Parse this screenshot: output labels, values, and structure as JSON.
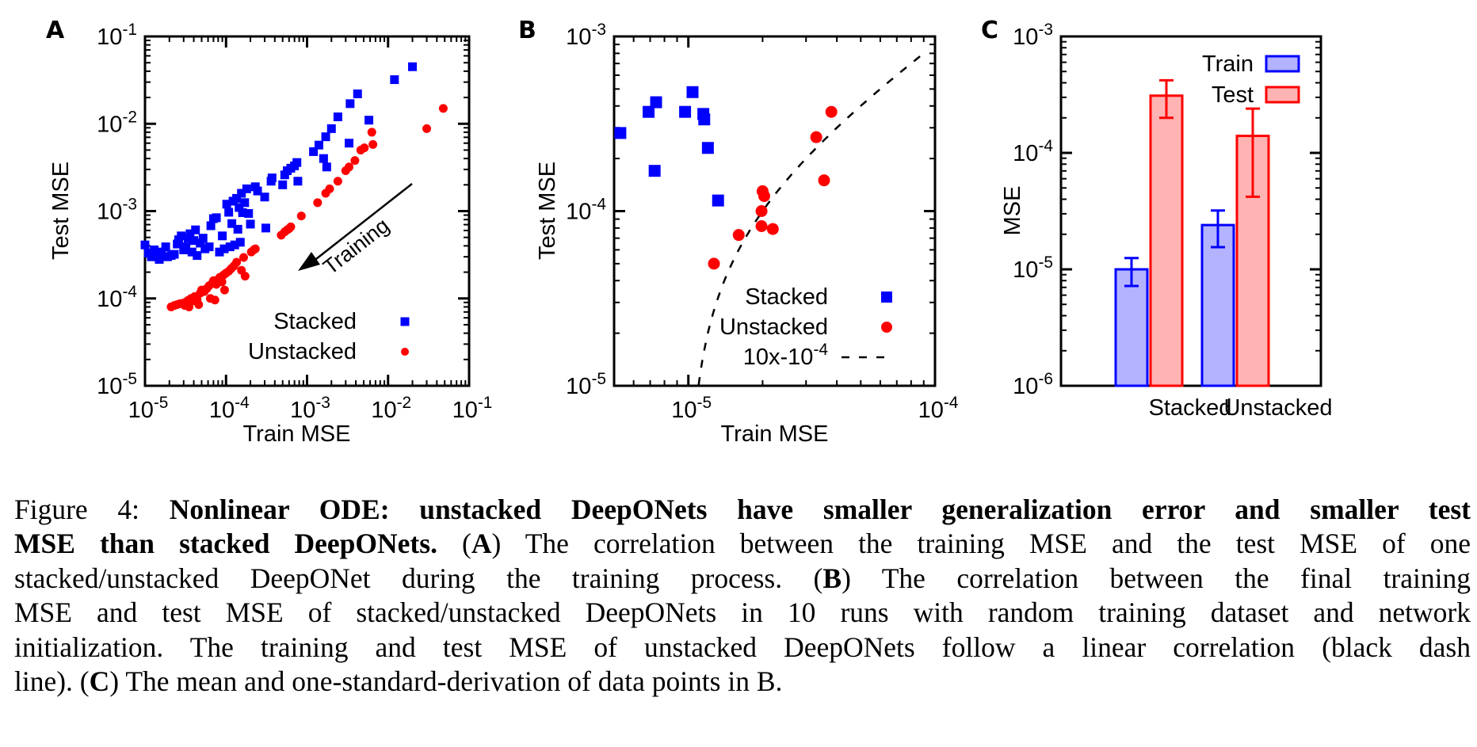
{
  "chart_data": [
    {
      "panel": "A",
      "type": "scatter",
      "xlabel": "Train MSE",
      "ylabel": "Test MSE",
      "xscale": "log",
      "yscale": "log",
      "xlim": [
        1e-05,
        0.1
      ],
      "ylim": [
        1e-05,
        0.1
      ],
      "xticks": [
        {
          "value": 1e-05,
          "base": "10",
          "exp": "-5"
        },
        {
          "value": 0.0001,
          "base": "10",
          "exp": "-4"
        },
        {
          "value": 0.001,
          "base": "10",
          "exp": "-3"
        },
        {
          "value": 0.01,
          "base": "10",
          "exp": "-2"
        },
        {
          "value": 0.1,
          "base": "10",
          "exp": "-1"
        }
      ],
      "yticks": [
        {
          "value": 1e-05,
          "base": "10",
          "exp": "-5"
        },
        {
          "value": 0.0001,
          "base": "10",
          "exp": "-4"
        },
        {
          "value": 0.001,
          "base": "10",
          "exp": "-3"
        },
        {
          "value": 0.01,
          "base": "10",
          "exp": "-2"
        },
        {
          "value": 0.1,
          "base": "10",
          "exp": "-1"
        }
      ],
      "legend": "bottom-right",
      "annotation": {
        "text": "Training",
        "arrow_from": [
          0.007,
          0.0011
        ],
        "arrow_to": [
          0.0008,
          0.00021
        ]
      },
      "series": [
        {
          "name": "Stacked",
          "marker": "square",
          "color": "#0000ff",
          "points": [
            [
              1e-05,
              0.00041
            ],
            [
              1.1e-05,
              0.00033
            ],
            [
              1.2e-05,
              0.0003
            ],
            [
              1.3e-05,
              0.00036
            ],
            [
              1.4e-05,
              0.0003
            ],
            [
              1.5e-05,
              0.00028
            ],
            [
              1.6e-05,
              0.00034
            ],
            [
              1.8e-05,
              0.00039
            ],
            [
              1.9e-05,
              0.0003
            ],
            [
              2.1e-05,
              0.00031
            ],
            [
              2.3e-05,
              0.00032
            ],
            [
              2.5e-05,
              0.00042
            ],
            [
              2.6e-05,
              0.00047
            ],
            [
              2.8e-05,
              0.00052
            ],
            [
              3e-05,
              0.00036
            ],
            [
              3.2e-05,
              0.00039
            ],
            [
              3.4e-05,
              0.00049
            ],
            [
              3.6e-05,
              0.00055
            ],
            [
              3.8e-05,
              0.00034
            ],
            [
              4e-05,
              0.00046
            ],
            [
              4.2e-05,
              0.00061
            ],
            [
              4.4e-05,
              0.00031
            ],
            [
              4.8e-05,
              0.00043
            ],
            [
              5.2e-05,
              0.00049
            ],
            [
              5.5e-05,
              0.00037
            ],
            [
              6.2e-05,
              0.00039
            ],
            [
              6.5e-05,
              0.00068
            ],
            [
              7e-05,
              0.00082
            ],
            [
              7.6e-05,
              0.00084
            ],
            [
              8.3e-05,
              0.00034
            ],
            [
              9e-05,
              0.00052
            ],
            [
              9.5e-05,
              0.00037
            ],
            [
              0.000102,
              0.0012
            ],
            [
              0.000108,
              0.00097
            ],
            [
              0.000112,
              0.00039
            ],
            [
              0.000118,
              0.00072
            ],
            [
              0.000122,
              0.0013
            ],
            [
              0.000128,
              0.00041
            ],
            [
              0.000135,
              0.0014
            ],
            [
              0.00014,
              0.00062
            ],
            [
              0.000145,
              0.0011
            ],
            [
              0.00015,
              0.00044
            ],
            [
              0.000155,
              0.0016
            ],
            [
              0.00016,
              0.00096
            ],
            [
              0.00017,
              0.00125
            ],
            [
              0.00018,
              0.0018
            ],
            [
              0.00019,
              0.00094
            ],
            [
              0.0002,
              0.00071
            ],
            [
              0.00023,
              0.0019
            ],
            [
              0.000245,
              0.0017
            ],
            [
              0.0003,
              0.00145
            ],
            [
              0.00031,
              0.00064
            ],
            [
              0.00036,
              0.0022
            ],
            [
              0.00037,
              0.0024
            ],
            [
              0.0005,
              0.002
            ],
            [
              0.00053,
              0.0026
            ],
            [
              0.00057,
              0.0029
            ],
            [
              0.00063,
              0.0031
            ],
            [
              0.0007,
              0.0033
            ],
            [
              0.00075,
              0.0036
            ],
            [
              0.00077,
              0.0022
            ],
            [
              0.0012,
              0.0048
            ],
            [
              0.0014,
              0.0057
            ],
            [
              0.0016,
              0.004
            ],
            [
              0.0017,
              0.0071
            ],
            [
              0.00175,
              0.0032
            ],
            [
              0.002,
              0.0088
            ],
            [
              0.0024,
              0.012
            ],
            [
              0.0033,
              0.006
            ],
            [
              0.0034,
              0.017
            ],
            [
              0.0042,
              0.022
            ],
            [
              0.0058,
              0.011
            ],
            [
              0.012,
              0.032
            ],
            [
              0.02,
              0.045
            ]
          ]
        },
        {
          "name": "Unstacked",
          "marker": "circle",
          "color": "#ff0000",
          "points": [
            [
              2.1e-05,
              8e-05
            ],
            [
              2.3e-05,
              8.3e-05
            ],
            [
              2.5e-05,
              8.5e-05
            ],
            [
              2.7e-05,
              8.7e-05
            ],
            [
              2.9e-05,
              8.8e-05
            ],
            [
              3.1e-05,
              8.3e-05
            ],
            [
              3.2e-05,
              9.1e-05
            ],
            [
              3.4e-05,
              9.5e-05
            ],
            [
              3.5e-05,
              8e-05
            ],
            [
              3.7e-05,
              0.0001
            ],
            [
              3.9e-05,
              9.4e-05
            ],
            [
              4.1e-05,
              0.000105
            ],
            [
              4.4e-05,
              9.8e-05
            ],
            [
              4.6e-05,
              8.5e-05
            ],
            [
              4.8e-05,
              0.000115
            ],
            [
              5e-05,
              0.000125
            ],
            [
              5.4e-05,
              0.00012
            ],
            [
              5.8e-05,
              0.00013
            ],
            [
              6.2e-05,
              0.00014
            ],
            [
              6.4e-05,
              0.0001
            ],
            [
              6.8e-05,
              0.00015
            ],
            [
              7e-05,
              0.00016
            ],
            [
              7.3e-05,
              9.6e-05
            ],
            [
              7.6e-05,
              0.000145
            ],
            [
              8e-05,
              0.000165
            ],
            [
              8.4e-05,
              0.000175
            ],
            [
              8.9e-05,
              0.000155
            ],
            [
              9.3e-05,
              0.000185
            ],
            [
              9.6e-05,
              0.000125
            ],
            [
              0.0001,
              0.000195
            ],
            [
              0.000108,
              0.000205
            ],
            [
              0.000116,
              0.00022
            ],
            [
              0.000125,
              0.000235
            ],
            [
              0.000135,
              0.00026
            ],
            [
              0.000155,
              0.00021
            ],
            [
              0.000165,
              0.000295
            ],
            [
              0.000172,
              0.00018
            ],
            [
              0.000205,
              0.00034
            ],
            [
              0.00022,
              0.00036
            ],
            [
              0.00023,
              0.00037
            ],
            [
              0.00048,
              0.00053
            ],
            [
              0.00053,
              0.00058
            ],
            [
              0.00057,
              0.00061
            ],
            [
              0.0006,
              0.00063
            ],
            [
              0.00063,
              0.00066
            ],
            [
              0.00085,
              0.00088
            ],
            [
              0.00135,
              0.00125
            ],
            [
              0.0017,
              0.0016
            ],
            [
              0.0019,
              0.0018
            ],
            [
              0.0024,
              0.0022
            ],
            [
              0.003,
              0.0029
            ],
            [
              0.0033,
              0.0032
            ],
            [
              0.0039,
              0.0038
            ],
            [
              0.0046,
              0.005
            ],
            [
              0.0051,
              0.0053
            ],
            [
              0.0063,
              0.008
            ],
            [
              0.0065,
              0.0058
            ],
            [
              0.03,
              0.0088
            ],
            [
              0.048,
              0.015
            ]
          ]
        }
      ]
    },
    {
      "panel": "B",
      "type": "scatter",
      "xlabel": "Train MSE",
      "ylabel": "Test MSE",
      "xscale": "log",
      "yscale": "log",
      "xlim": [
        5e-06,
        0.0001
      ],
      "ylim": [
        1e-05,
        0.001
      ],
      "xticks": [
        {
          "value": 1e-05,
          "base": "10",
          "exp": "-5"
        },
        {
          "value": 0.0001,
          "base": "10",
          "exp": "-4"
        }
      ],
      "yticks": [
        {
          "value": 1e-05,
          "base": "10",
          "exp": "-5"
        },
        {
          "value": 0.0001,
          "base": "10",
          "exp": "-4"
        },
        {
          "value": 0.001,
          "base": "10",
          "exp": "-3"
        }
      ],
      "legend": "bottom-right",
      "series": [
        {
          "name": "Stacked",
          "marker": "square",
          "color": "#0000ff",
          "points": [
            [
              5.3e-06,
              0.00028
            ],
            [
              6.9e-06,
              0.00037
            ],
            [
              7.4e-06,
              0.00042
            ],
            [
              7.3e-06,
              0.00017
            ],
            [
              9.7e-06,
              0.00037
            ],
            [
              1.04e-05,
              0.00048
            ],
            [
              1.15e-05,
              0.00036
            ],
            [
              1.16e-05,
              0.000335
            ],
            [
              1.2e-05,
              0.00023
            ],
            [
              1.32e-05,
              0.000115
            ]
          ]
        },
        {
          "name": "Unstacked",
          "marker": "circle",
          "color": "#ff0000",
          "points": [
            [
              1.27e-05,
              5e-05
            ],
            [
              1.6e-05,
              7.3e-05
            ],
            [
              2e-05,
              0.00013
            ],
            [
              2.03e-05,
              0.000122
            ],
            [
              1.98e-05,
              0.0001
            ],
            [
              1.98e-05,
              8.2e-05
            ],
            [
              2.2e-05,
              7.9e-05
            ],
            [
              3.3e-05,
              0.000265
            ],
            [
              3.55e-05,
              0.00015
            ],
            [
              3.8e-05,
              0.00037
            ]
          ]
        },
        {
          "name": "10x-10^-4",
          "label_base": "10x-10",
          "label_exp": "-4",
          "style": "dashed",
          "color": "#000000",
          "function": "y = 10*x - 1e-4"
        }
      ]
    },
    {
      "panel": "C",
      "type": "bar",
      "ylabel": "MSE",
      "yscale": "log",
      "ylim": [
        1e-06,
        0.001
      ],
      "yticks": [
        {
          "value": 1e-06,
          "base": "10",
          "exp": "-6"
        },
        {
          "value": 1e-05,
          "base": "10",
          "exp": "-5"
        },
        {
          "value": 0.0001,
          "base": "10",
          "exp": "-4"
        },
        {
          "value": 0.001,
          "base": "10",
          "exp": "-3"
        }
      ],
      "categories": [
        "Stacked",
        "Unstacked"
      ],
      "legend": "top-right",
      "series": [
        {
          "name": "Train",
          "stroke": "#0000ff",
          "fill": "#b3b3ff",
          "values": [
            1e-05,
            2.4e-05
          ],
          "err_low": [
            7.2e-06,
            1.55e-05
          ],
          "err_high": [
            1.25e-05,
            3.2e-05
          ]
        },
        {
          "name": "Test",
          "stroke": "#ff0000",
          "fill": "#ffb3b3",
          "values": [
            0.00031,
            0.00014
          ],
          "err_low": [
            0.0002,
            4.2e-05
          ],
          "err_high": [
            0.00042,
            0.00024
          ]
        }
      ]
    }
  ],
  "caption": {
    "prefix": "Figure 4:  ",
    "bold_title_1": "Nonlinear ODE: unstacked DeepONets have smaller generalization error and smaller test",
    "bold_title_2": "MSE than stacked DeepONets.",
    "a_open": "  (",
    "a_label": "A",
    "a_text": ") The correlation between the training MSE and the test MSE of one",
    "line3": "stacked/unstacked DeepONet during the training process.  (",
    "b_label": "B",
    "b_text": ") The correlation between the final training",
    "line4": "MSE and test MSE of stacked/unstacked DeepONets in 10 runs with random training dataset and network",
    "line5": "initialization.  The training and test MSE of unstacked DeepONets follow a linear correlation (black dash",
    "line6_pre": "line). (",
    "c_label": "C",
    "line6_post": ") The mean and one-standard-derivation of data points in B."
  }
}
